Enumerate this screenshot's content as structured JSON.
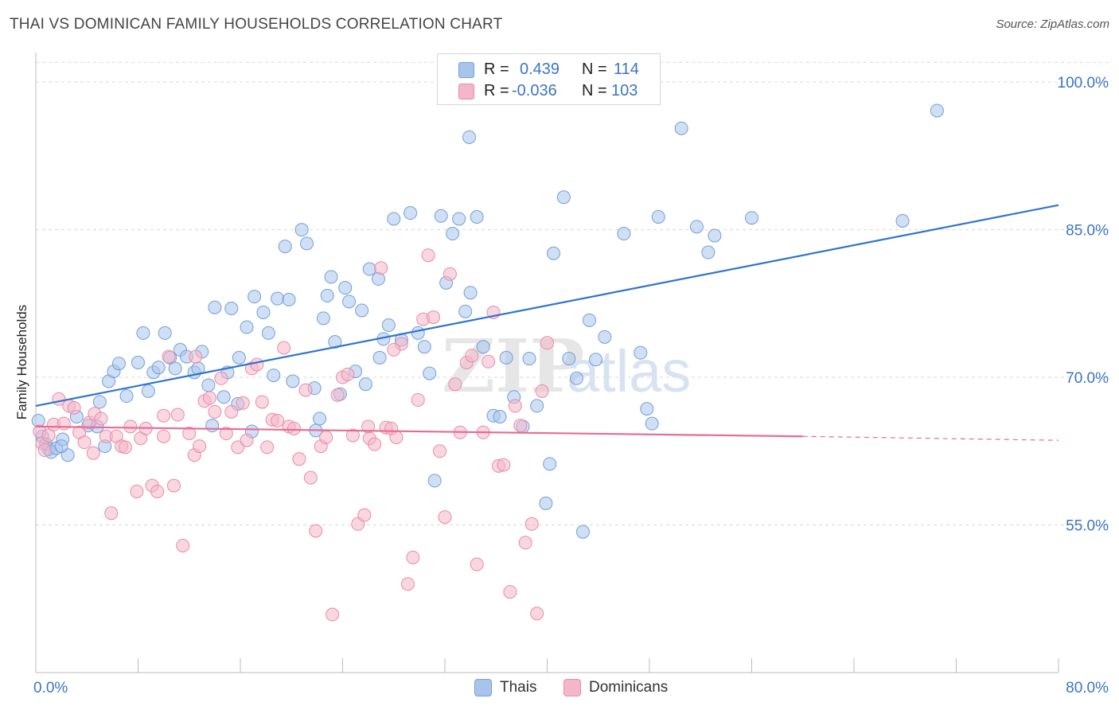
{
  "title": "THAI VS DOMINICAN FAMILY HOUSEHOLDS CORRELATION CHART",
  "source": "Source: ZipAtlas.com",
  "legend": {
    "rows": [
      {
        "r_label": "R =",
        "r_value": "0.439",
        "n_label": "N =",
        "n_value": "114",
        "color": "#a9c4eb"
      },
      {
        "r_label": "R =",
        "r_value": "-0.036",
        "n_label": "N =",
        "n_value": "103",
        "color": "#f4b6c8"
      }
    ]
  },
  "bottom_legend": [
    {
      "label": "Thais",
      "color": "#a9c4eb"
    },
    {
      "label": "Dominicans",
      "color": "#f4b6c8"
    }
  ],
  "chart_data": {
    "type": "scatter",
    "title": "THAI VS DOMINICAN FAMILY HOUSEHOLDS CORRELATION CHART",
    "xlabel": "",
    "ylabel": "Family Households",
    "xlim": [
      0,
      80
    ],
    "ylim": [
      40,
      103
    ],
    "x_tick_labels": [
      "0.0%",
      "80.0%"
    ],
    "y_ticks": [
      55,
      70,
      85,
      100
    ],
    "y_tick_labels": [
      "55.0%",
      "70.0%",
      "85.0%",
      "100.0%"
    ],
    "grid": true,
    "legend_position": "top-center",
    "watermark": "ZIPatlas",
    "series": [
      {
        "name": "Thais",
        "color": "#6fa0dc",
        "fill": "#a9c4eb",
        "trend": {
          "x0": 0,
          "y0": 67.1,
          "x1": 80,
          "y1": 87.5
        },
        "points": [
          [
            0.2,
            65.6
          ],
          [
            0.5,
            64.0
          ],
          [
            0.8,
            63.2
          ],
          [
            1.0,
            62.7
          ],
          [
            1.2,
            62.4
          ],
          [
            1.6,
            62.8
          ],
          [
            2.1,
            63.7
          ],
          [
            2.5,
            62.1
          ],
          [
            3.2,
            66.0
          ],
          [
            4.1,
            65.1
          ],
          [
            5.0,
            67.5
          ],
          [
            5.4,
            63.0
          ],
          [
            5.7,
            69.6
          ],
          [
            6.1,
            70.6
          ],
          [
            6.5,
            71.4
          ],
          [
            7.1,
            68.1
          ],
          [
            8.0,
            71.5
          ],
          [
            8.4,
            74.5
          ],
          [
            8.8,
            68.6
          ],
          [
            9.2,
            70.5
          ],
          [
            9.6,
            71.0
          ],
          [
            10.1,
            74.5
          ],
          [
            10.5,
            72.0
          ],
          [
            10.9,
            70.9
          ],
          [
            11.3,
            72.8
          ],
          [
            11.8,
            72.1
          ],
          [
            12.4,
            70.5
          ],
          [
            12.7,
            70.9
          ],
          [
            13.0,
            72.6
          ],
          [
            13.5,
            69.2
          ],
          [
            13.8,
            65.1
          ],
          [
            14.0,
            77.1
          ],
          [
            14.7,
            68.0
          ],
          [
            15.0,
            70.5
          ],
          [
            15.3,
            77.0
          ],
          [
            15.9,
            72.0
          ],
          [
            16.5,
            75.1
          ],
          [
            16.9,
            64.5
          ],
          [
            17.1,
            78.2
          ],
          [
            17.8,
            76.6
          ],
          [
            18.2,
            74.5
          ],
          [
            18.6,
            70.2
          ],
          [
            18.9,
            78.0
          ],
          [
            19.5,
            83.3
          ],
          [
            19.8,
            77.9
          ],
          [
            20.1,
            69.6
          ],
          [
            20.8,
            85.0
          ],
          [
            21.2,
            83.6
          ],
          [
            21.9,
            64.6
          ],
          [
            22.2,
            65.8
          ],
          [
            22.5,
            76.0
          ],
          [
            22.8,
            78.3
          ],
          [
            23.1,
            80.2
          ],
          [
            23.4,
            73.6
          ],
          [
            23.8,
            68.3
          ],
          [
            24.2,
            79.1
          ],
          [
            24.5,
            77.7
          ],
          [
            25.0,
            70.6
          ],
          [
            25.5,
            76.8
          ],
          [
            25.8,
            69.3
          ],
          [
            26.1,
            81.0
          ],
          [
            26.8,
            80.0
          ],
          [
            27.2,
            73.9
          ],
          [
            27.6,
            75.3
          ],
          [
            28.0,
            86.1
          ],
          [
            28.6,
            73.8
          ],
          [
            29.3,
            86.7
          ],
          [
            29.9,
            74.5
          ],
          [
            30.4,
            73.1
          ],
          [
            30.8,
            70.4
          ],
          [
            31.2,
            59.5
          ],
          [
            31.7,
            86.4
          ],
          [
            32.1,
            79.6
          ],
          [
            32.6,
            84.6
          ],
          [
            33.1,
            86.1
          ],
          [
            33.6,
            76.7
          ],
          [
            34.0,
            78.6
          ],
          [
            34.5,
            86.3
          ],
          [
            35.0,
            73.1
          ],
          [
            35.8,
            66.1
          ],
          [
            36.3,
            66.0
          ],
          [
            36.8,
            72.0
          ],
          [
            37.4,
            68.0
          ],
          [
            38.1,
            65.0
          ],
          [
            38.6,
            71.9
          ],
          [
            39.2,
            67.1
          ],
          [
            39.9,
            57.2
          ],
          [
            40.2,
            61.2
          ],
          [
            40.5,
            82.6
          ],
          [
            41.3,
            88.3
          ],
          [
            41.7,
            71.9
          ],
          [
            42.3,
            69.9
          ],
          [
            42.8,
            54.3
          ],
          [
            43.3,
            75.8
          ],
          [
            43.8,
            71.8
          ],
          [
            44.5,
            74.1
          ],
          [
            46.0,
            84.6
          ],
          [
            47.3,
            72.5
          ],
          [
            47.8,
            66.8
          ],
          [
            48.2,
            65.3
          ],
          [
            48.7,
            86.3
          ],
          [
            50.5,
            95.3
          ],
          [
            51.7,
            85.3
          ],
          [
            52.6,
            82.7
          ],
          [
            53.1,
            84.4
          ],
          [
            56.0,
            86.2
          ],
          [
            67.8,
            85.9
          ],
          [
            70.5,
            97.1
          ],
          [
            33.9,
            94.4
          ],
          [
            26.9,
            72.0
          ],
          [
            21.8,
            68.9
          ],
          [
            15.8,
            67.3
          ],
          [
            4.8,
            65.0
          ],
          [
            2.0,
            63.0
          ]
        ]
      },
      {
        "name": "Dominicans",
        "color": "#ea8aa8",
        "fill": "#f4b6c8",
        "trend": {
          "x0": 0,
          "y0": 65.0,
          "x1": 60,
          "y1": 64.0,
          "dash_to_x": 80,
          "dash_to_y": 63.6
        },
        "points": [
          [
            0.3,
            64.5
          ],
          [
            0.5,
            63.3
          ],
          [
            0.7,
            62.6
          ],
          [
            1.0,
            64.1
          ],
          [
            1.4,
            65.2
          ],
          [
            1.8,
            67.8
          ],
          [
            2.2,
            65.3
          ],
          [
            2.6,
            67.1
          ],
          [
            3.0,
            66.9
          ],
          [
            3.4,
            64.4
          ],
          [
            3.8,
            63.4
          ],
          [
            4.2,
            65.4
          ],
          [
            4.6,
            66.3
          ],
          [
            5.1,
            65.8
          ],
          [
            5.5,
            64.0
          ],
          [
            5.9,
            56.2
          ],
          [
            6.3,
            64.0
          ],
          [
            6.7,
            63.0
          ],
          [
            7.0,
            62.9
          ],
          [
            7.4,
            65.0
          ],
          [
            7.9,
            58.4
          ],
          [
            8.2,
            63.8
          ],
          [
            8.6,
            64.8
          ],
          [
            9.1,
            59.0
          ],
          [
            9.5,
            58.4
          ],
          [
            10.0,
            64.0
          ],
          [
            10.4,
            72.1
          ],
          [
            10.8,
            59.0
          ],
          [
            11.1,
            66.2
          ],
          [
            11.5,
            52.9
          ],
          [
            12.0,
            64.3
          ],
          [
            12.4,
            62.1
          ],
          [
            12.8,
            63.0
          ],
          [
            13.2,
            67.6
          ],
          [
            13.6,
            67.9
          ],
          [
            14.0,
            66.5
          ],
          [
            14.5,
            69.9
          ],
          [
            14.9,
            64.3
          ],
          [
            15.3,
            66.5
          ],
          [
            15.8,
            62.9
          ],
          [
            16.2,
            67.4
          ],
          [
            16.5,
            63.6
          ],
          [
            16.9,
            70.9
          ],
          [
            17.3,
            71.3
          ],
          [
            17.7,
            67.5
          ],
          [
            18.1,
            62.9
          ],
          [
            18.5,
            65.7
          ],
          [
            18.9,
            65.6
          ],
          [
            19.4,
            73.0
          ],
          [
            19.8,
            65.0
          ],
          [
            20.2,
            64.8
          ],
          [
            20.6,
            61.7
          ],
          [
            21.1,
            68.7
          ],
          [
            21.5,
            59.8
          ],
          [
            21.9,
            54.4
          ],
          [
            22.3,
            63.0
          ],
          [
            22.7,
            63.9
          ],
          [
            23.2,
            45.9
          ],
          [
            23.6,
            68.2
          ],
          [
            24.0,
            70.0
          ],
          [
            24.4,
            70.3
          ],
          [
            24.8,
            64.1
          ],
          [
            25.2,
            55.1
          ],
          [
            25.7,
            56.0
          ],
          [
            26.1,
            63.8
          ],
          [
            26.5,
            63.2
          ],
          [
            27.0,
            81.1
          ],
          [
            27.4,
            64.9
          ],
          [
            27.8,
            64.8
          ],
          [
            28.2,
            63.9
          ],
          [
            28.6,
            73.4
          ],
          [
            29.1,
            49.0
          ],
          [
            29.5,
            51.7
          ],
          [
            29.9,
            67.7
          ],
          [
            30.3,
            75.9
          ],
          [
            30.7,
            82.4
          ],
          [
            31.1,
            76.1
          ],
          [
            31.6,
            62.5
          ],
          [
            32.0,
            55.8
          ],
          [
            32.4,
            80.5
          ],
          [
            32.8,
            69.3
          ],
          [
            33.2,
            64.4
          ],
          [
            33.7,
            71.5
          ],
          [
            34.1,
            72.2
          ],
          [
            34.5,
            51.0
          ],
          [
            35.0,
            64.4
          ],
          [
            35.4,
            71.6
          ],
          [
            35.8,
            76.6
          ],
          [
            36.2,
            61.0
          ],
          [
            36.6,
            61.1
          ],
          [
            37.1,
            48.2
          ],
          [
            37.5,
            67.1
          ],
          [
            37.9,
            65.1
          ],
          [
            38.3,
            53.2
          ],
          [
            38.8,
            55.1
          ],
          [
            39.2,
            46.0
          ],
          [
            39.6,
            68.6
          ],
          [
            40.0,
            73.5
          ],
          [
            12.5,
            72.1
          ],
          [
            4.5,
            62.3
          ],
          [
            28.0,
            72.8
          ],
          [
            26.0,
            65.0
          ],
          [
            10.0,
            66.1
          ]
        ]
      }
    ]
  }
}
